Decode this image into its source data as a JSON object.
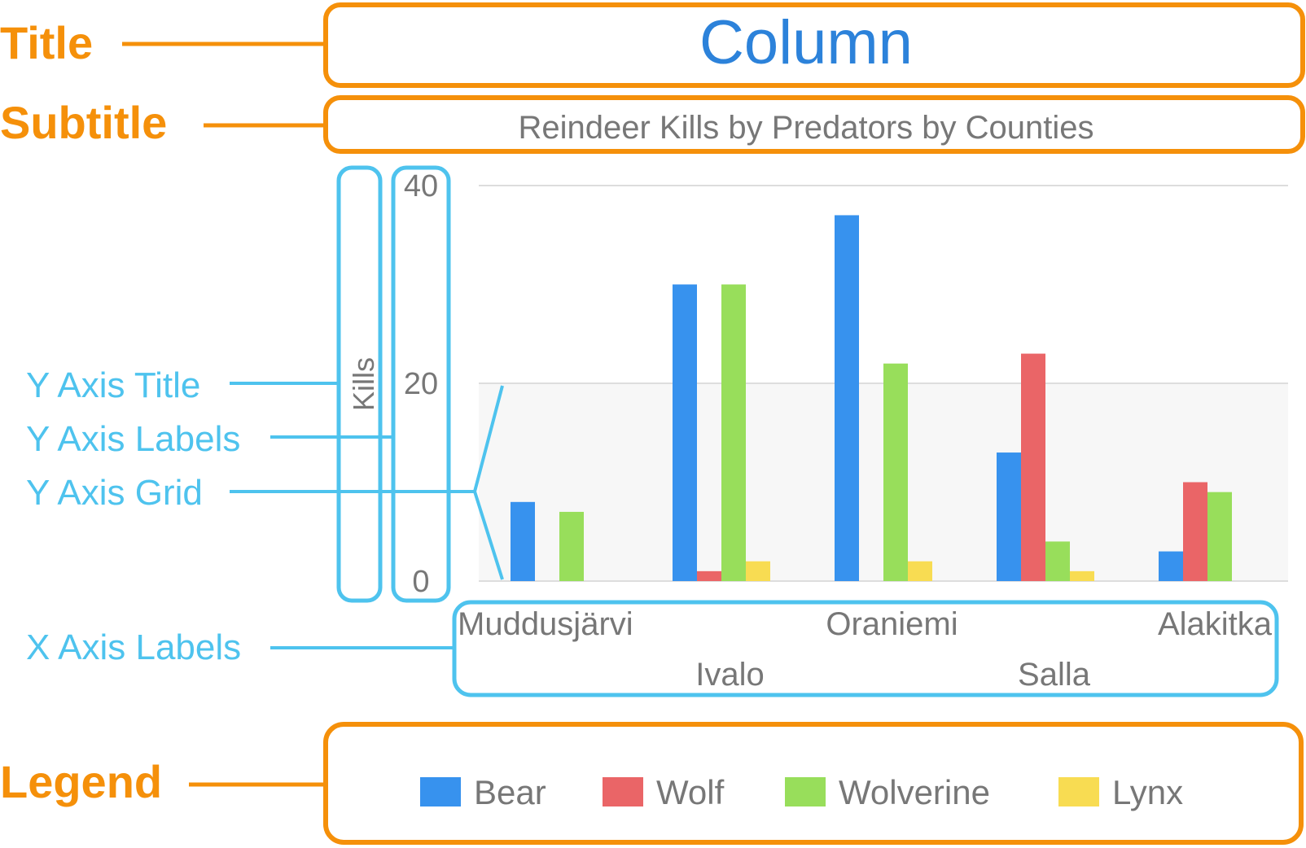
{
  "callouts": {
    "title": "Title",
    "subtitle": "Subtitle",
    "legend": "Legend",
    "y_axis_title": "Y Axis Title",
    "y_axis_labels": "Y Axis Labels",
    "y_axis_grid": "Y Axis Grid",
    "x_axis_labels": "X Axis Labels"
  },
  "colors": {
    "callout_orange": "#F5900A",
    "callout_blue": "#4EC3EE",
    "title_blue": "#2C82DA",
    "grid": "#DDDDDD",
    "band": "#F7F7F7",
    "text_gray": "#777777"
  },
  "chart_data": {
    "type": "bar",
    "title": "Column",
    "subtitle": "Reindeer Kills by Predators by Counties",
    "ylabel": "Kills",
    "xlabel": "",
    "ylim": [
      0,
      40
    ],
    "yticks": [
      0,
      20,
      40
    ],
    "grid": true,
    "legend_position": "bottom",
    "categories": [
      "Muddusjärvi",
      "Ivalo",
      "Oraniemi",
      "Salla",
      "Alakitka"
    ],
    "series": [
      {
        "name": "Bear",
        "color": "#3792EE",
        "values": [
          8,
          30,
          37,
          13,
          3
        ]
      },
      {
        "name": "Wolf",
        "color": "#EA6567",
        "values": [
          0,
          1,
          0,
          23,
          10
        ]
      },
      {
        "name": "Wolverine",
        "color": "#98DE5B",
        "values": [
          7,
          30,
          22,
          4,
          9
        ]
      },
      {
        "name": "Lynx",
        "color": "#F8DC52",
        "values": [
          0,
          2,
          2,
          1,
          0
        ]
      }
    ]
  }
}
